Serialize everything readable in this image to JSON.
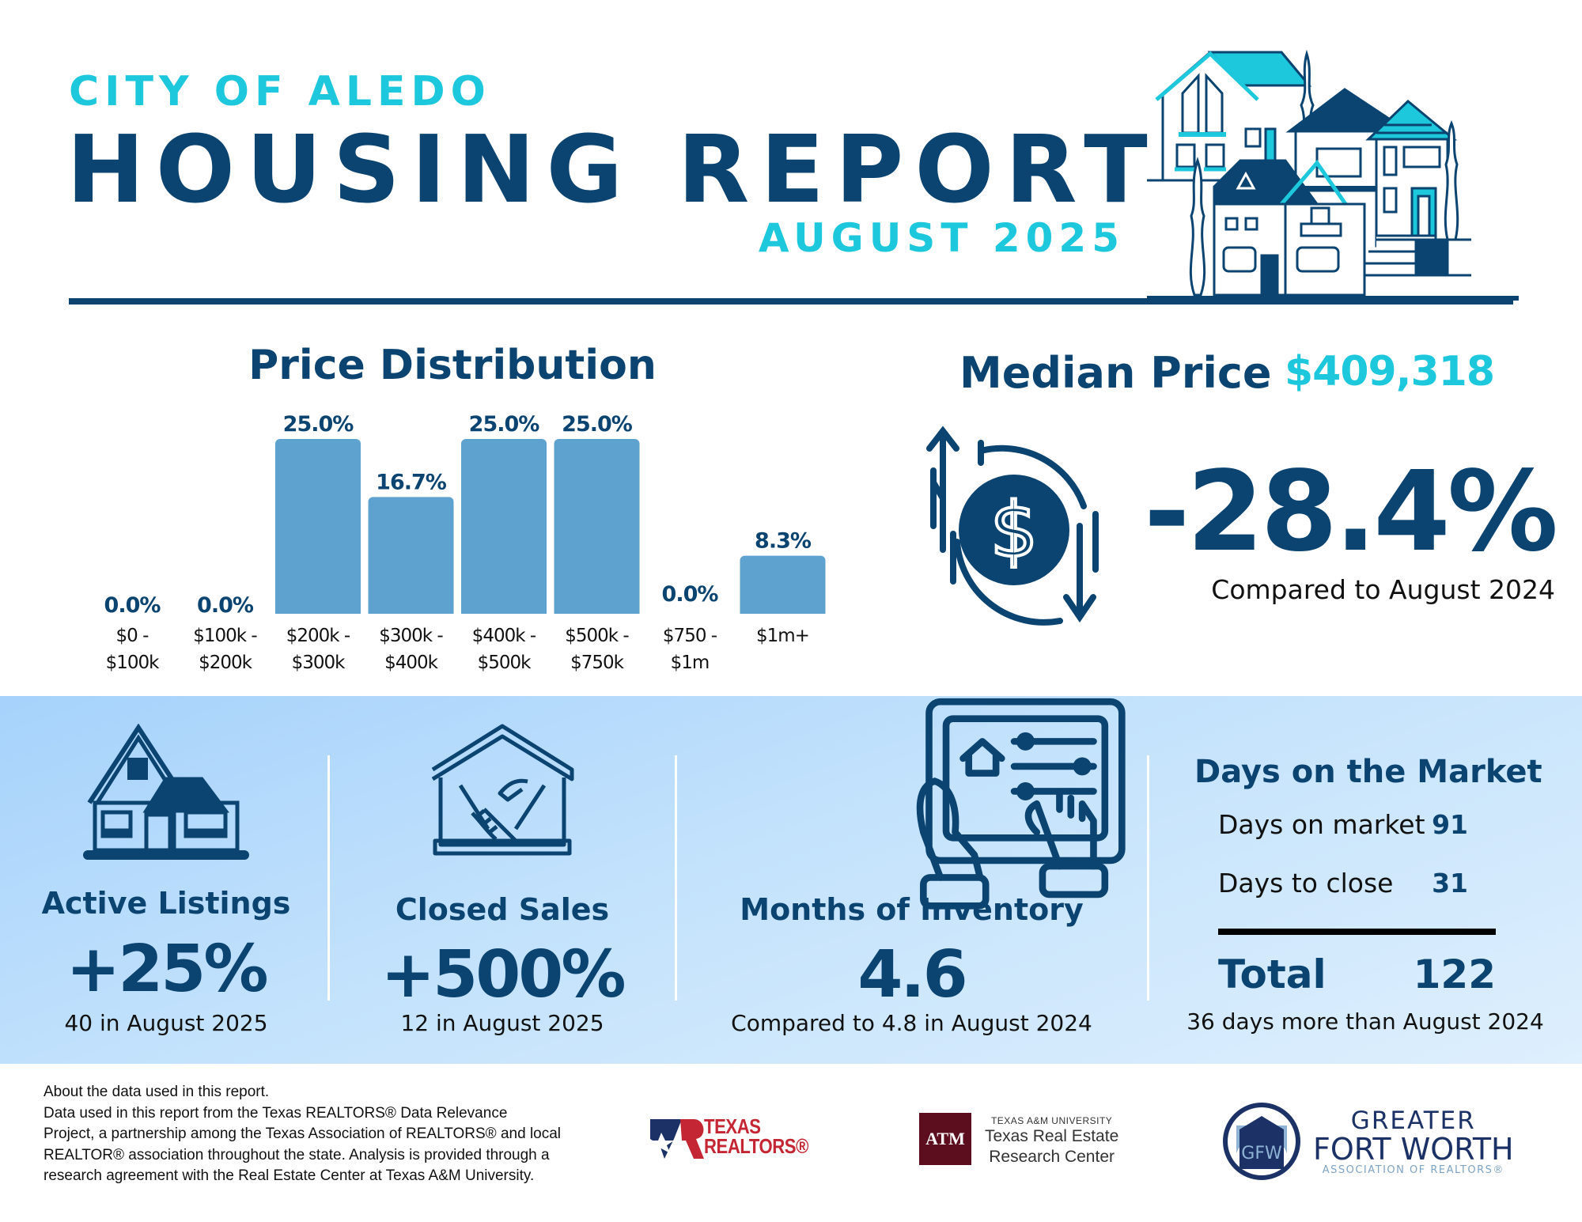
{
  "header": {
    "city": "CITY OF ALEDO",
    "title": "HOUSING REPORT",
    "period": "AUGUST 2025"
  },
  "colors": {
    "navy": "#0b4470",
    "cyan": "#1ec8dc",
    "bar": "#5ea3cf",
    "band_start": "#a6d2fb",
    "band_end": "#deeffd"
  },
  "chart_data": {
    "type": "bar",
    "title": "Price Distribution",
    "categories": [
      "$0 - $100k",
      "$100k - $200k",
      "$200k - $300k",
      "$300k - $400k",
      "$400k - $500k",
      "$500k - $750k",
      "$750 - $1m",
      "$1m+"
    ],
    "category_lines": [
      [
        "$0 -",
        "$100k"
      ],
      [
        "$100k -",
        "$200k"
      ],
      [
        "$200k -",
        "$300k"
      ],
      [
        "$300k -",
        "$400k"
      ],
      [
        "$400k -",
        "$500k"
      ],
      [
        "$500k -",
        "$750k"
      ],
      [
        "$750 -",
        "$1m"
      ],
      [
        "$1m+"
      ]
    ],
    "values": [
      0.0,
      0.0,
      25.0,
      16.7,
      25.0,
      25.0,
      0.0,
      8.3
    ],
    "value_labels": [
      "0.0%",
      "0.0%",
      "25.0%",
      "16.7%",
      "25.0%",
      "25.0%",
      "0.0%",
      "8.3%"
    ],
    "xlabel": "",
    "ylabel": "",
    "ylim": [
      0,
      25
    ],
    "grid": false,
    "legend": "none"
  },
  "median": {
    "label": "Median Price",
    "value": "$409,318",
    "change": "-28.4%",
    "compared": "Compared to August 2024",
    "icon": "dollar-exchange-icon"
  },
  "stats": [
    {
      "title": "Active Listings",
      "value": "+25%",
      "sub": "40 in August 2025",
      "icon": "house-icon"
    },
    {
      "title": "Closed Sales",
      "value": "+500%",
      "sub": "12 in August 2025",
      "icon": "handshake-house-icon"
    },
    {
      "title": "Months of Inventory",
      "value": "4.6",
      "sub": "Compared to 4.8 in August 2024",
      "icon": "tablet-hands-icon"
    }
  ],
  "days_on_market": {
    "title": "Days on the Market",
    "rows": [
      {
        "label": "Days on market",
        "value": "91"
      },
      {
        "label": "Days to close",
        "value": "31"
      }
    ],
    "total_label": "Total",
    "total_value": "122",
    "sub": "36 days more than August 2024"
  },
  "footer": {
    "about": [
      "About the data used in this report.",
      "Data used in this report from the Texas REALTORS® Data Relevance",
      "Project, a partnership among the Texas Association of REALTORS® and local",
      "REALTOR® association throughout the state. Analysis is provided through a",
      "research agreement with the Real Estate Center at Texas A&M University."
    ],
    "logos": {
      "texas_realtors": [
        "TEXAS",
        "REALTORS®"
      ],
      "tamu_mark": "ATM",
      "tamu_small": "TEXAS A&M UNIVERSITY",
      "tamu_lines": [
        "Texas Real Estate",
        "Research Center"
      ],
      "gfw_line1": "GREATER",
      "gfw_line2": "FORT WORTH",
      "gfw_line3": "ASSOCIATION OF REALTORS®",
      "gfw_mark": "GFW"
    }
  }
}
